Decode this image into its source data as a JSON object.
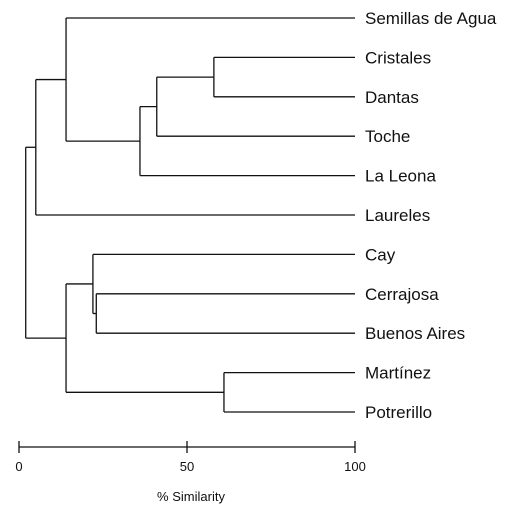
{
  "chart_data": {
    "type": "dendrogram",
    "xlabel": "% Similarity",
    "xlim": [
      0,
      100
    ],
    "ticks": [
      {
        "value": 0,
        "label": "0"
      },
      {
        "value": 50,
        "label": "50"
      },
      {
        "value": 100,
        "label": "100"
      }
    ],
    "leaves": [
      "Semillas de Agua",
      "Cristales",
      "Dantas",
      "Toche",
      "La Leona",
      "Laureles",
      "Cay",
      "Cerrajosa",
      "Buenos Aires",
      "Martínez",
      "Potrerillo"
    ],
    "merges": [
      {
        "id": "cristales-dantas",
        "children": [
          "Cristales",
          "Dantas"
        ],
        "similarity": 58
      },
      {
        "id": "with-toche",
        "children": [
          "cristales-dantas",
          "Toche"
        ],
        "similarity": 41
      },
      {
        "id": "with-la-leona",
        "children": [
          "with-toche",
          "La Leona"
        ],
        "similarity": 36
      },
      {
        "id": "with-semillas",
        "children": [
          "Semillas de Agua",
          "with-la-leona"
        ],
        "similarity": 14
      },
      {
        "id": "with-laureles",
        "children": [
          "with-semillas",
          "Laureles"
        ],
        "similarity": 5
      },
      {
        "id": "cerrajosa-buenos-aires",
        "children": [
          "Cerrajosa",
          "Buenos Aires"
        ],
        "similarity": 23
      },
      {
        "id": "with-cay",
        "children": [
          "Cay",
          "cerrajosa-buenos-aires"
        ],
        "similarity": 22
      },
      {
        "id": "martinez-potrerillo",
        "children": [
          "Martínez",
          "Potrerillo"
        ],
        "similarity": 61
      },
      {
        "id": "group-2",
        "children": [
          "with-cay",
          "martinez-potrerillo"
        ],
        "similarity": 14
      },
      {
        "id": "root",
        "children": [
          "with-laureles",
          "group-2"
        ],
        "similarity": 2
      }
    ]
  }
}
